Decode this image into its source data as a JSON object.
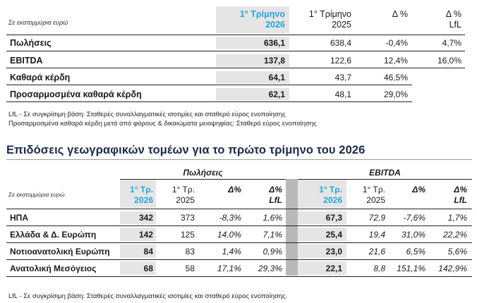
{
  "table1": {
    "unit_label": "Σε εκατομμύρια ευρώ",
    "headers": {
      "q1_2026": [
        "1° Τρίμηνο",
        "2026"
      ],
      "q1_2025": [
        "1° Τρίμηνο",
        "2025"
      ],
      "delta": [
        "Δ %",
        ""
      ],
      "delta_lfl": [
        "Δ %",
        "LfL"
      ]
    },
    "rows": [
      {
        "label": "Πωλήσεις",
        "q1_2026": "636,1",
        "q1_2025": "638,4",
        "delta": "-0,4%",
        "lfl": "4,7%"
      },
      {
        "label": "EBITDA",
        "q1_2026": "137,8",
        "q1_2025": "122,6",
        "delta": "12,4%",
        "lfl": "16,0%"
      },
      {
        "label": "Καθαρά κέρδη",
        "q1_2026": "64,1",
        "q1_2025": "43,7",
        "delta": "46,5%",
        "lfl": ""
      },
      {
        "label": "Προσαρμοσμένα καθαρά κέρδη",
        "q1_2026": "62,1",
        "q1_2025": "48,1",
        "delta": "29,0%",
        "lfl": ""
      }
    ]
  },
  "notes1": [
    "LfL - Σε συγκρίσιμη βάση: Σταθερές συναλλαγματικές ισοτιμίες και σταθερό εύρος ενοποίησης",
    "Προσαρμοσμένα καθαρά κέρδη μετά από φόρους & δικαιώματα μειοψηφίας: Σταθερό εύρος ενοποίησης"
  ],
  "section_title": "Επιδόσεις γεωγραφικών τομέων για το πρώτο τρίμηνο του 2026",
  "table2": {
    "unit_label": "Σε εκατομμύρια ευρώ",
    "group_sales": "Πωλήσεις",
    "group_ebitda": "EBITDA",
    "headers": {
      "q1_2026": [
        "1° Τρ.",
        "2026"
      ],
      "q1_2025": [
        "1° Τρ.",
        "2025"
      ],
      "delta": [
        "Δ%",
        ""
      ],
      "delta_lfl": [
        "Δ%",
        "LfL"
      ]
    },
    "rows": [
      {
        "label": "ΗΠΑ",
        "s26": "342",
        "s25": "373",
        "sd": "-8,3%",
        "sl": "1,6%",
        "e26": "67,3",
        "e25": "72,9",
        "ed": "-7,6%",
        "el": "1,7%"
      },
      {
        "label": "Ελλάδα & Δ. Ευρώπη",
        "s26": "142",
        "s25": "125",
        "sd": "14,0%",
        "sl": "7,1%",
        "e26": "25,4",
        "e25": "19,4",
        "ed": "31,0%",
        "el": "22,2%"
      },
      {
        "label": "Νοτιοανατολική Ευρώπη",
        "s26": "84",
        "s25": "83",
        "sd": "1,4%",
        "sl": "0,9%",
        "e26": "23,0",
        "e25": "21,6",
        "ed": "6,5%",
        "el": "5,6%"
      },
      {
        "label": "Ανατολική Μεσόγειος",
        "s26": "68",
        "s25": "58",
        "sd": "17,1%",
        "sl": "29,3%",
        "e26": "22,1",
        "e25": "8,8",
        "ed": "151,1%",
        "el": "142,9%"
      }
    ]
  },
  "notes2": [
    "LfL - Σε συγκρίσιμη βάση: Σταθερές συναλλαγματικές ισοτιμίες και σταθερό εύρος ενοποίησης."
  ]
}
